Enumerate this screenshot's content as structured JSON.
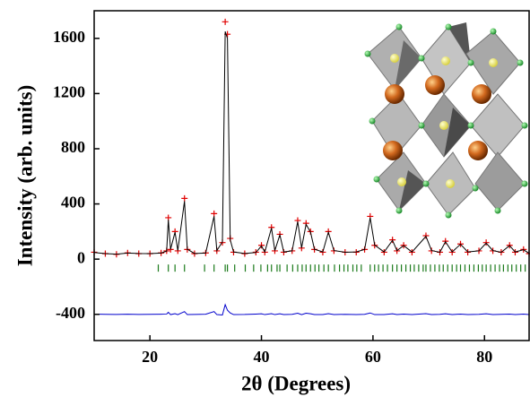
{
  "chart_data": {
    "type": "line",
    "x_label": "2θ (Degrees)",
    "y_label": "Intensity (arb. units)",
    "xlim": [
      10,
      88
    ],
    "ylim": [
      -590,
      1800
    ],
    "xticks": [
      20,
      40,
      60,
      80
    ],
    "yticks": [
      1600,
      1200,
      800,
      400,
      0,
      -400
    ],
    "x": [
      10,
      12,
      14,
      16,
      18,
      20,
      22,
      23,
      23.3,
      23.7,
      24.5,
      25,
      26.2,
      26.7,
      28,
      30,
      31.5,
      32,
      33,
      33.5,
      33.9,
      34.4,
      35,
      37,
      39,
      40,
      40.6,
      41.8,
      42.4,
      43.3,
      44,
      45.5,
      46.5,
      47.2,
      48,
      48.8,
      49.5,
      51,
      52,
      53,
      55,
      57,
      58.5,
      59.5,
      60.3,
      62,
      63.5,
      64.3,
      65.5,
      67,
      69.5,
      70.5,
      72,
      73,
      74.2,
      75.7,
      77,
      79,
      80.3,
      81.5,
      83,
      84.5,
      85.5,
      87,
      88
    ],
    "series": [
      {
        "color": "#e00000",
        "marker": "plus",
        "values": [
          50,
          40,
          35,
          45,
          40,
          40,
          45,
          60,
          300,
          70,
          200,
          60,
          440,
          70,
          40,
          45,
          330,
          60,
          120,
          1720,
          1630,
          150,
          50,
          40,
          50,
          100,
          50,
          230,
          60,
          180,
          50,
          60,
          280,
          80,
          260,
          200,
          70,
          50,
          200,
          60,
          50,
          50,
          70,
          310,
          100,
          50,
          140,
          60,
          100,
          50,
          170,
          60,
          50,
          130,
          50,
          110,
          50,
          60,
          120,
          60,
          50,
          100,
          50,
          70,
          40
        ]
      },
      {
        "color": "#000000",
        "marker": "none",
        "values": [
          48,
          40,
          36,
          44,
          41,
          40,
          44,
          58,
          285,
          72,
          195,
          62,
          420,
          72,
          41,
          44,
          310,
          62,
          125,
          1650,
          1600,
          140,
          52,
          41,
          48,
          96,
          52,
          225,
          62,
          176,
          52,
          60,
          272,
          82,
          252,
          196,
          72,
          52,
          195,
          62,
          50,
          52,
          70,
          300,
          102,
          52,
          136,
          62,
          98,
          52,
          165,
          62,
          50,
          126,
          52,
          108,
          52,
          60,
          116,
          62,
          50,
          98,
          52,
          68,
          42
        ]
      },
      {
        "color": "#0000cc",
        "marker": "none",
        "values": [
          -398,
          -400,
          -401,
          -399,
          -401,
          -400,
          -399,
          -398,
          -385,
          -402,
          -395,
          -402,
          -380,
          -402,
          -401,
          -399,
          -380,
          -402,
          -405,
          -330,
          -370,
          -390,
          -402,
          -401,
          -398,
          -396,
          -402,
          -395,
          -402,
          -396,
          -402,
          -400,
          -392,
          -402,
          -392,
          -396,
          -402,
          -402,
          -395,
          -402,
          -400,
          -402,
          -400,
          -390,
          -402,
          -402,
          -396,
          -402,
          -398,
          -402,
          -395,
          -402,
          -400,
          -396,
          -402,
          -398,
          -402,
          -400,
          -396,
          -402,
          -400,
          -398,
          -402,
          -398,
          -402
        ]
      }
    ],
    "bragg_color": "#1a7a1a",
    "bragg_positions": [
      21.5,
      23.3,
      24.5,
      26.2,
      29.8,
      31.5,
      33.5,
      33.9,
      35.2,
      37.1,
      38.6,
      39.9,
      41.1,
      41.8,
      42.8,
      43.3,
      44.6,
      45.6,
      46.5,
      47.3,
      48.0,
      48.8,
      49.6,
      50.3,
      51.2,
      52.0,
      53.1,
      54.0,
      54.8,
      55.5,
      56.4,
      57.1,
      57.9,
      59.5,
      60.3,
      61.0,
      61.8,
      62.6,
      63.5,
      64.3,
      65.1,
      65.9,
      66.7,
      67.4,
      68.2,
      69.0,
      69.5,
      70.3,
      71.1,
      71.9,
      72.6,
      73.4,
      74.2,
      75.0,
      75.7,
      76.5,
      77.3,
      78.1,
      78.9,
      79.6,
      80.3,
      81.1,
      81.9,
      82.7,
      83.4,
      84.2,
      84.9,
      85.7,
      86.5,
      87.3
    ]
  }
}
